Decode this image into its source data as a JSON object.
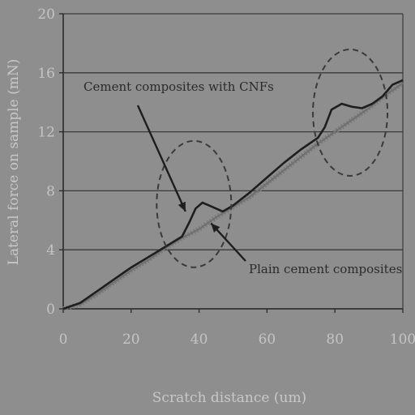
{
  "chart_data": {
    "type": "line",
    "title": "",
    "xlabel": "Scratch distance (um)",
    "ylabel": "Lateral force on sample (mN)",
    "xlim": [
      0,
      100
    ],
    "ylim": [
      0,
      20
    ],
    "xticks": [
      "0",
      "20",
      "40",
      "60",
      "80",
      "100"
    ],
    "yticks": [
      "0",
      "4",
      "8",
      "12",
      "16",
      "20"
    ],
    "grid": "horizontal",
    "series": [
      {
        "name": "Cement composites with CNFs",
        "color": "#1e1e1e",
        "x": [
          0,
          5,
          10,
          15,
          20,
          25,
          30,
          35,
          37,
          39,
          41,
          44,
          47,
          50,
          55,
          60,
          65,
          70,
          75,
          77,
          79,
          82,
          85,
          88,
          91,
          94,
          97,
          100
        ],
        "y": [
          0,
          0.4,
          1.2,
          2.0,
          2.8,
          3.5,
          4.2,
          4.9,
          5.8,
          6.8,
          7.2,
          6.9,
          6.6,
          7.0,
          7.9,
          8.9,
          9.9,
          10.8,
          11.6,
          12.3,
          13.5,
          13.9,
          13.7,
          13.6,
          13.9,
          14.4,
          15.2,
          15.5
        ]
      },
      {
        "name": "Plain cement composites",
        "color": "#6f6f6f",
        "x": [
          0,
          5,
          10,
          15,
          20,
          25,
          30,
          35,
          40,
          45,
          50,
          55,
          60,
          65,
          70,
          75,
          80,
          85,
          90,
          95,
          100
        ],
        "y": [
          0,
          0.3,
          1.0,
          1.8,
          2.6,
          3.3,
          4.1,
          4.8,
          5.4,
          6.2,
          6.9,
          7.6,
          8.5,
          9.4,
          10.3,
          11.2,
          12.0,
          12.8,
          13.6,
          14.5,
          15.3
        ]
      }
    ],
    "annotations": [
      {
        "text": "Cement composites with CNFs",
        "target_series": 0
      },
      {
        "text": "Plain cement composites",
        "target_series": 1
      }
    ]
  }
}
